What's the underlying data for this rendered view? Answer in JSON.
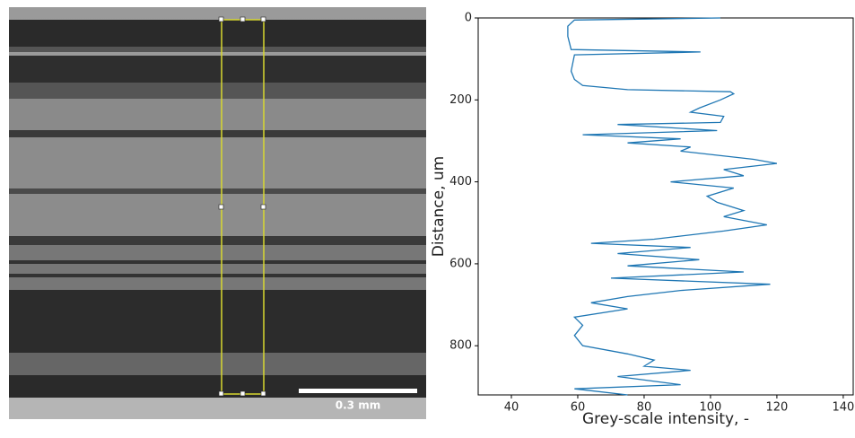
{
  "image": {
    "scale_bar": "0.3 mm"
  },
  "chart_data": {
    "type": "line",
    "xlabel": "Grey-scale intensity, -",
    "ylabel": "Distance, um",
    "y": [
      0,
      5,
      20,
      45,
      77,
      83,
      90,
      130,
      150,
      165,
      175,
      180,
      185,
      200,
      220,
      230,
      240,
      255,
      260,
      275,
      285,
      295,
      305,
      315,
      325,
      345,
      355,
      370,
      385,
      400,
      415,
      435,
      450,
      470,
      485,
      505,
      520,
      540,
      550,
      560,
      575,
      590,
      605,
      620,
      635,
      650,
      665,
      680,
      695,
      710,
      730,
      750,
      775,
      800,
      820,
      835,
      850,
      860,
      875,
      895,
      905,
      920
    ],
    "series": [
      {
        "color": "#1f77b4",
        "values": [
          103,
          59,
          57,
          57,
          58,
          97,
          59,
          58,
          59,
          61.5,
          75,
          106,
          107,
          103,
          96.6,
          94,
          104,
          103,
          72,
          102,
          61.5,
          91,
          75,
          94,
          91,
          113,
          120,
          104,
          110,
          88,
          107,
          99,
          102,
          110,
          104,
          117,
          104,
          83,
          64,
          94,
          72,
          96.6,
          75,
          110,
          70,
          118,
          91,
          75,
          64,
          75,
          59,
          61.5,
          59,
          61.5,
          75,
          83,
          80,
          94,
          72,
          91,
          59,
          75
        ]
      }
    ],
    "xlim": [
      30,
      143
    ],
    "xticks": [
      40,
      60,
      80,
      100,
      120,
      140
    ],
    "ylim": [
      920,
      0
    ],
    "yticks": [
      0,
      200,
      400,
      600,
      800
    ]
  }
}
